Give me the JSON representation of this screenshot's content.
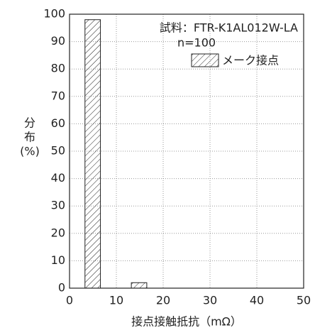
{
  "chart_data": {
    "type": "histogram",
    "annotations": [
      "試料：FTR-K1AL012W-LA",
      "n=100"
    ],
    "series": [
      {
        "name": "メーク接点",
        "color": "#222222",
        "values": [
          98,
          0,
          0,
          2
        ]
      }
    ],
    "bins": [
      3.3,
      6.6,
      9.9,
      13.2,
      16.5
    ],
    "xlabel": "接点接触抵抗（mΩ）",
    "ylabel": [
      "分",
      "布",
      "(%)"
    ],
    "xlim": [
      0,
      50
    ],
    "xticks": [
      0,
      10,
      20,
      30,
      40,
      50
    ],
    "ylim": [
      0,
      100
    ],
    "yticks": [
      0,
      10,
      20,
      30,
      40,
      50,
      60,
      70,
      80,
      90,
      100
    ],
    "grid": true,
    "legend": "upper right"
  }
}
